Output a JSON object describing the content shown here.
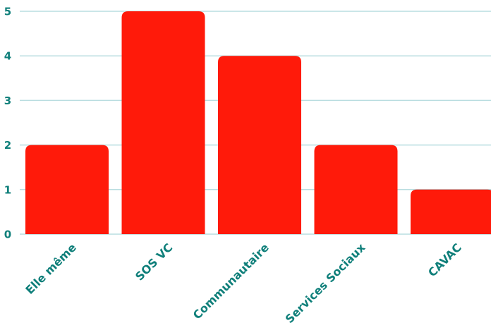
{
  "chart_data": {
    "type": "bar",
    "categories": [
      "Elle même",
      "SOS VC",
      "Communautaire",
      "Services Sociaux",
      "CAVAC"
    ],
    "values": [
      2,
      5,
      4,
      2,
      1
    ],
    "ylim": [
      0,
      5
    ],
    "yticks": [
      "0",
      "1",
      "2",
      "3",
      "4",
      "5"
    ],
    "grid": true,
    "title": "",
    "xlabel": "",
    "ylabel": ""
  },
  "colors": {
    "bar": "#ff1a0a",
    "grid": "#b9dde0",
    "axis_text": "#0f7f7a"
  }
}
